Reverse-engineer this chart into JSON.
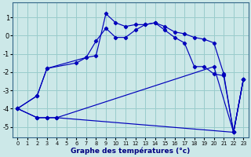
{
  "xlabel": "Graphe des températures (°c)",
  "xlim": [
    -0.5,
    23.5
  ],
  "ylim": [
    -5.6,
    1.8
  ],
  "background_color": "#cce8e8",
  "grid_color": "#99cccc",
  "line_color": "#0000bb",
  "yticks": [
    -5,
    -4,
    -3,
    -2,
    -1,
    0,
    1
  ],
  "xticks": [
    0,
    1,
    2,
    3,
    4,
    5,
    6,
    7,
    8,
    9,
    10,
    11,
    12,
    13,
    14,
    15,
    16,
    17,
    18,
    19,
    20,
    21,
    22,
    23
  ],
  "curve1_x": [
    0,
    2,
    3,
    7,
    8,
    9,
    10,
    11,
    12,
    13,
    14,
    15,
    16,
    17,
    18,
    19,
    20,
    21,
    22,
    23
  ],
  "curve1_y": [
    -4.0,
    -3.3,
    -1.8,
    -1.2,
    -1.1,
    1.2,
    0.7,
    0.5,
    0.6,
    0.6,
    0.7,
    0.5,
    0.2,
    0.1,
    -0.1,
    -0.2,
    -0.4,
    -2.1,
    -5.3,
    -2.4
  ],
  "curve2_x": [
    0,
    2,
    3,
    6,
    7,
    8,
    9,
    10,
    11,
    12,
    13,
    14,
    15,
    16,
    17,
    18,
    19,
    20,
    21,
    22,
    23
  ],
  "curve2_y": [
    -4.0,
    -3.3,
    -1.8,
    -1.5,
    -1.2,
    -0.3,
    0.4,
    -0.1,
    -0.1,
    0.3,
    0.6,
    0.7,
    0.3,
    -0.1,
    -0.4,
    -1.7,
    -1.7,
    -2.1,
    -2.2,
    -5.3,
    -2.4
  ],
  "curve3_x": [
    0,
    2,
    3,
    4,
    22,
    23
  ],
  "curve3_y": [
    -4.0,
    -4.5,
    -4.5,
    -4.5,
    -5.3,
    -2.4
  ],
  "curve4_x": [
    0,
    2,
    3,
    4,
    20,
    22,
    23
  ],
  "curve4_y": [
    -4.0,
    -4.5,
    -4.5,
    -4.5,
    -1.7,
    -5.3,
    -2.4
  ]
}
